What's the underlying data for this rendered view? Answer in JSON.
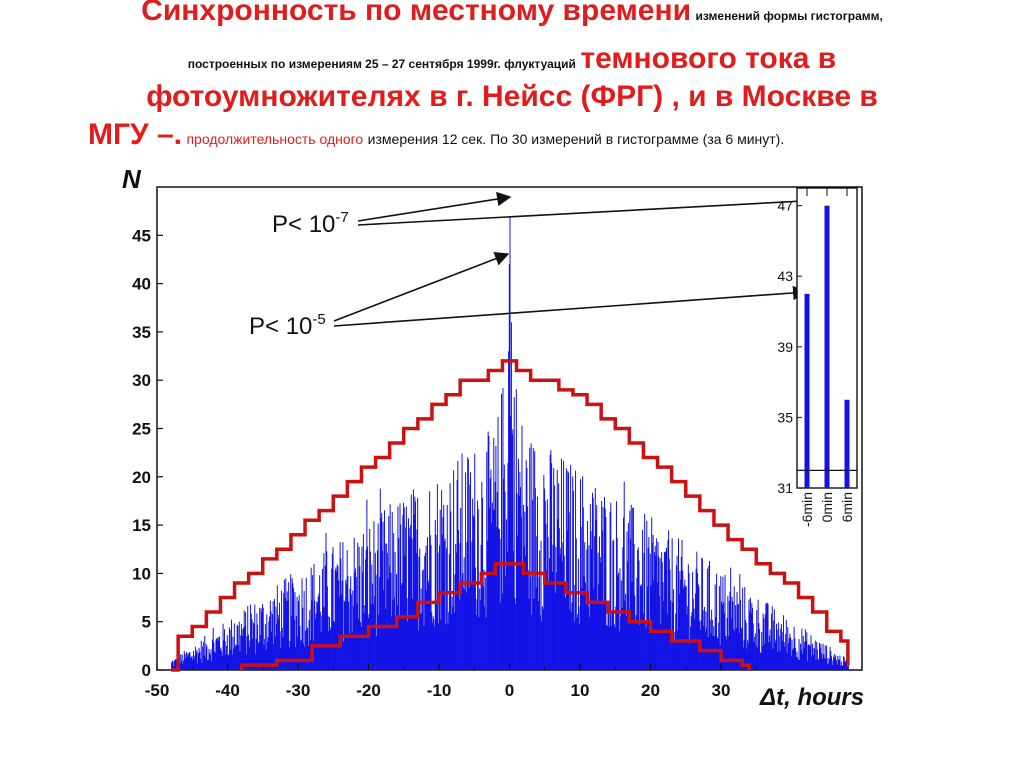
{
  "title": {
    "line1_big": "Синхронность по местному времени",
    "line1_small": "изменений формы гистограмм,",
    "line2_small": "построенных по измерениям 25 – 27 сентября 1999г. флуктуаций",
    "line2_big": "темнового тока в",
    "line3_big": "фотоумножителях в г. Нейсс (ФРГ) , и в Москве в",
    "line4_big": "МГУ –.",
    "line4_red": "продолжительность одного",
    "line4_black": "измерения 12 сек. По 30 измерений в гистограмме (за 6 минут)."
  },
  "chart_data": [
    {
      "type": "bar",
      "ylabel": "N",
      "xlabel": "Δt, hours",
      "xlim": [
        -50,
        50
      ],
      "ylim": [
        0,
        50
      ],
      "x_ticks": [
        -50,
        -40,
        -30,
        -20,
        -10,
        0,
        10,
        20,
        30
      ],
      "y_ticks": [
        0,
        5,
        10,
        15,
        20,
        25,
        30,
        35,
        40,
        45
      ],
      "bin_width_hours": 0.1,
      "series": [
        {
          "color": "#1212e6",
          "style": "histogram",
          "peak_points": [
            [
              0,
              47
            ],
            [
              -0.1,
              42
            ],
            [
              0.2,
              36
            ],
            [
              -0.2,
              33
            ]
          ],
          "range": [
            -48,
            48
          ]
        },
        {
          "color": "#cc1111",
          "style": "step",
          "points": [
            [
              -48,
              0
            ],
            [
              -47,
              3.5
            ],
            [
              -45,
              4.5
            ],
            [
              -43,
              6
            ],
            [
              -41,
              7.5
            ],
            [
              -39,
              9
            ],
            [
              -37,
              10
            ],
            [
              -35,
              11.5
            ],
            [
              -33,
              12.5
            ],
            [
              -31,
              14
            ],
            [
              -29,
              15.5
            ],
            [
              -27,
              16.5
            ],
            [
              -25,
              18
            ],
            [
              -23,
              19.5
            ],
            [
              -21,
              21
            ],
            [
              -19,
              22
            ],
            [
              -17,
              23.5
            ],
            [
              -15,
              25
            ],
            [
              -13,
              26
            ],
            [
              -11,
              27.5
            ],
            [
              -9,
              28.5
            ],
            [
              -7,
              30
            ],
            [
              -5,
              30
            ],
            [
              -3,
              31
            ],
            [
              -1,
              32
            ],
            [
              1,
              31
            ],
            [
              3,
              30
            ],
            [
              5,
              30
            ],
            [
              7,
              29
            ],
            [
              9,
              28.5
            ],
            [
              11,
              27.5
            ],
            [
              13,
              26
            ],
            [
              15,
              25
            ],
            [
              17,
              23.5
            ],
            [
              19,
              22
            ],
            [
              21,
              21
            ],
            [
              23,
              19.5
            ],
            [
              25,
              18
            ],
            [
              27,
              16.5
            ],
            [
              29,
              15
            ],
            [
              31,
              13.5
            ],
            [
              33,
              12.5
            ],
            [
              35,
              11
            ],
            [
              37,
              10
            ],
            [
              39,
              9
            ],
            [
              41,
              7.5
            ],
            [
              43,
              6
            ],
            [
              45,
              4
            ],
            [
              47,
              3
            ],
            [
              48,
              0.5
            ]
          ]
        },
        {
          "color": "#cc1111",
          "style": "step",
          "points": [
            [
              -38,
              0
            ],
            [
              -38,
              0.5
            ],
            [
              -33,
              1
            ],
            [
              -28,
              2.5
            ],
            [
              -24,
              3.5
            ],
            [
              -20,
              4.5
            ],
            [
              -16,
              5.5
            ],
            [
              -13,
              7
            ],
            [
              -10,
              8
            ],
            [
              -7,
              9
            ],
            [
              -4,
              10
            ],
            [
              -2,
              11
            ],
            [
              1,
              11
            ],
            [
              2,
              10
            ],
            [
              5,
              9
            ],
            [
              8,
              8
            ],
            [
              11,
              7
            ],
            [
              14,
              6
            ],
            [
              17,
              5
            ],
            [
              20,
              4
            ],
            [
              23,
              3
            ],
            [
              27,
              2
            ],
            [
              30,
              1
            ],
            [
              33,
              0.5
            ],
            [
              34,
              0
            ]
          ]
        }
      ],
      "annotations": [
        {
          "label": "P< 10",
          "exponent": "-7"
        },
        {
          "label": "P< 10",
          "exponent": "-5"
        }
      ]
    },
    {
      "type": "bar",
      "categories": [
        "-6min",
        "0min",
        "6min"
      ],
      "values": [
        42,
        47,
        36
      ],
      "ylim": [
        31,
        48
      ],
      "y_ticks": [
        31,
        35,
        39,
        43,
        47
      ],
      "baseline": 32.0,
      "color": "#1212e6"
    }
  ]
}
